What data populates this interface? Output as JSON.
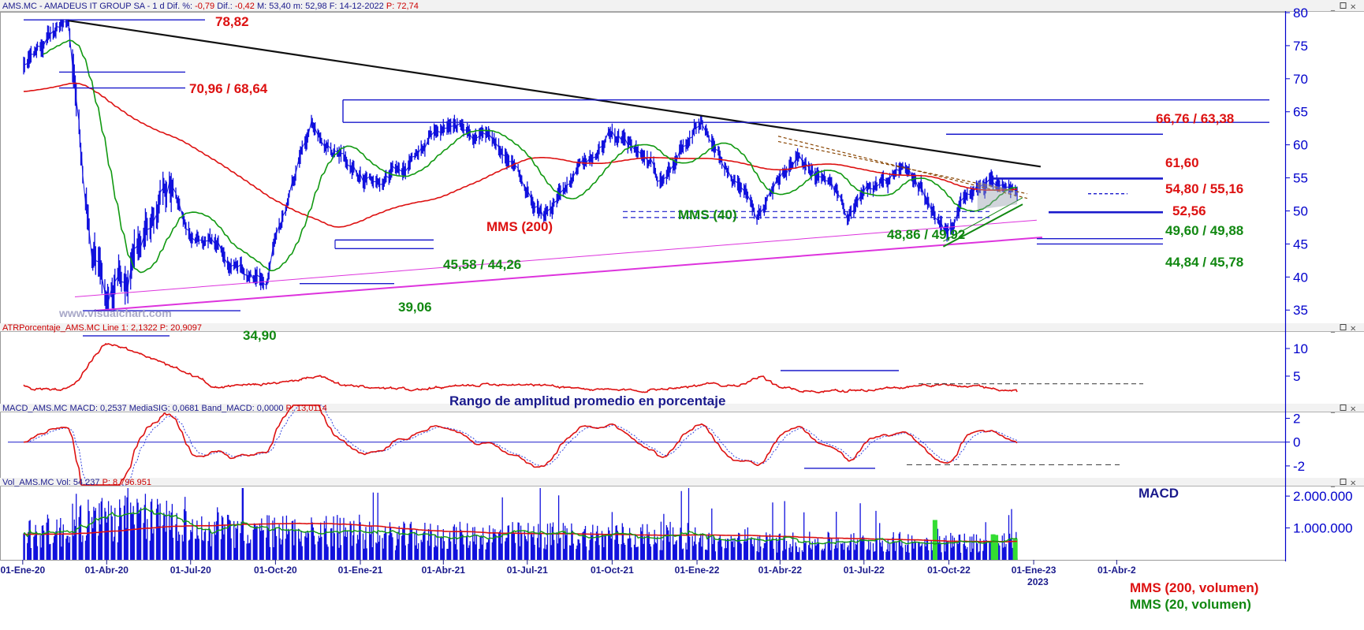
{
  "watermark": "www.visualchart.com",
  "panels": [
    {
      "id": "price",
      "title_parts": [
        {
          "text": "AMS.MC - AMADEUS IT GROUP SA -  1 d  Dif. %: ",
          "color": "#1a1a8c"
        },
        {
          "text": "-0,79",
          "color": "#cc0000"
        },
        {
          "text": "  Dif.: ",
          "color": "#1a1a8c"
        },
        {
          "text": "-0,42",
          "color": "#cc0000"
        },
        {
          "text": "  M: 53,40  m: 52,98  F: 14-12-2022  ",
          "color": "#1a1a8c"
        },
        {
          "text": "P: 72,74",
          "color": "#cc0000"
        }
      ],
      "yticks": [
        "80",
        "75",
        "70",
        "65",
        "60",
        "55",
        "50",
        "45",
        "40",
        "35"
      ]
    },
    {
      "id": "atr",
      "title_parts": [
        {
          "text": "ATRPorcentaje_AMS.MC  Line 1: 2,1322  P: 20,9097",
          "color": "#cc0000"
        }
      ],
      "yticks": [
        "10",
        "5"
      ]
    },
    {
      "id": "macd",
      "title_parts": [
        {
          "text": "MACD_AMS.MC  MACD: 0,2537  MediaSIG: 0,0681  Band_MACD: 0,0000  ",
          "color": "#1a1a8c"
        },
        {
          "text": "P: 13,0114",
          "color": "#cc0000"
        }
      ],
      "yticks": [
        "2",
        "0",
        "-2"
      ]
    },
    {
      "id": "vol",
      "title_parts": [
        {
          "text": "Vol_AMS.MC  Vol: 54.237  ",
          "color": "#1a1a8c"
        },
        {
          "text": "P: 8.796.951",
          "color": "#cc0000"
        }
      ],
      "yticks": [
        "2.000.000",
        "1.000.000"
      ]
    }
  ],
  "xaxis": {
    "ticks": [
      "01-Ene-20",
      "01-Abr-20",
      "01-Jul-20",
      "01-Oct-20",
      "01-Ene-21",
      "01-Abr-21",
      "01-Jul-21",
      "01-Oct-21",
      "01-Ene-22",
      "01-Abr-22",
      "01-Jul-22",
      "01-Oct-22",
      "01-Ene-23",
      "01-Abr-2"
    ],
    "year_marker": "2023"
  },
  "annotations": {
    "top_high": "78,82",
    "res_1": "70,96 / 68,64",
    "res_2": "66,76 / 63,38",
    "res_3": "61,60",
    "res_4": "54,80 / 55,16",
    "cur": "52,56",
    "sup_1": "49,60 / 49,88",
    "sup_2": "48,86 / 49,92",
    "sup_3": "45,58 / 44,26",
    "sup_4": "44,84 / 45,78",
    "sup_5": "39,06",
    "low": "34,90",
    "mms200": "MMS (200)",
    "mms40": "MMS (40)",
    "atr_title": "Rango de amplitud promedio en porcentaje",
    "macd": "MACD",
    "vol_mms200": "MMS (200, volumen)",
    "vol_mms20": "MMS (20, volumen)"
  },
  "chart_data": {
    "type": "line",
    "price_anchors": {
      "x": [
        "2020-01-02",
        "2020-02-19",
        "2020-03-16",
        "2020-04-01",
        "2020-06-08",
        "2020-07-01",
        "2020-09-22",
        "2020-10-01",
        "2020-11-09",
        "2021-01-04",
        "2021-02-15",
        "2021-04-09",
        "2021-05-20",
        "2021-07-19",
        "2021-08-19",
        "2021-10-01",
        "2021-11-24",
        "2022-01-05",
        "2022-03-07",
        "2022-04-20",
        "2022-06-13",
        "2022-08-17",
        "2022-09-30",
        "2022-10-13",
        "2022-11-15",
        "2022-12-14"
      ],
      "close": [
        72.0,
        78.8,
        45.0,
        38.0,
        54.0,
        47.0,
        39.1,
        46.0,
        63.0,
        55.0,
        57.0,
        64.0,
        60.0,
        50.0,
        54.0,
        63.0,
        55.0,
        64.0,
        49.0,
        60.0,
        50.0,
        57.0,
        46.0,
        50.0,
        54.0,
        53.2
      ]
    },
    "levels": [
      78.82,
      70.96,
      68.64,
      66.76,
      63.38,
      61.6,
      54.8,
      55.16,
      52.56,
      49.6,
      49.88,
      48.86,
      49.92,
      45.58,
      44.26,
      44.84,
      45.78,
      39.06,
      34.9
    ],
    "series": [
      {
        "name": "MMS (200)",
        "color": "#dd1111"
      },
      {
        "name": "MMS (40)",
        "color": "#119911"
      },
      {
        "name": "MMS (200, volumen)",
        "color": "#dd1111"
      },
      {
        "name": "MMS (20, volumen)",
        "color": "#119911"
      }
    ],
    "ranges": {
      "price": [
        33,
        80
      ],
      "atr": [
        0,
        13
      ],
      "macd": [
        -3,
        2.5
      ],
      "volume": [
        0,
        2300000
      ]
    },
    "indicator_last": {
      "atr": 2.1322,
      "macd": 0.2537,
      "macd_signal": 0.0681,
      "volume": 54237
    }
  },
  "colors": {
    "price": "#1111dd",
    "ma200": "#dd1111",
    "ma40": "#119911",
    "trend_black": "#111111",
    "trend_magenta": "#dd33dd",
    "level_blue": "#1a1acc",
    "annot_red": "#dd1111",
    "annot_green": "#118811",
    "annot_navy": "#1a1a8c"
  }
}
